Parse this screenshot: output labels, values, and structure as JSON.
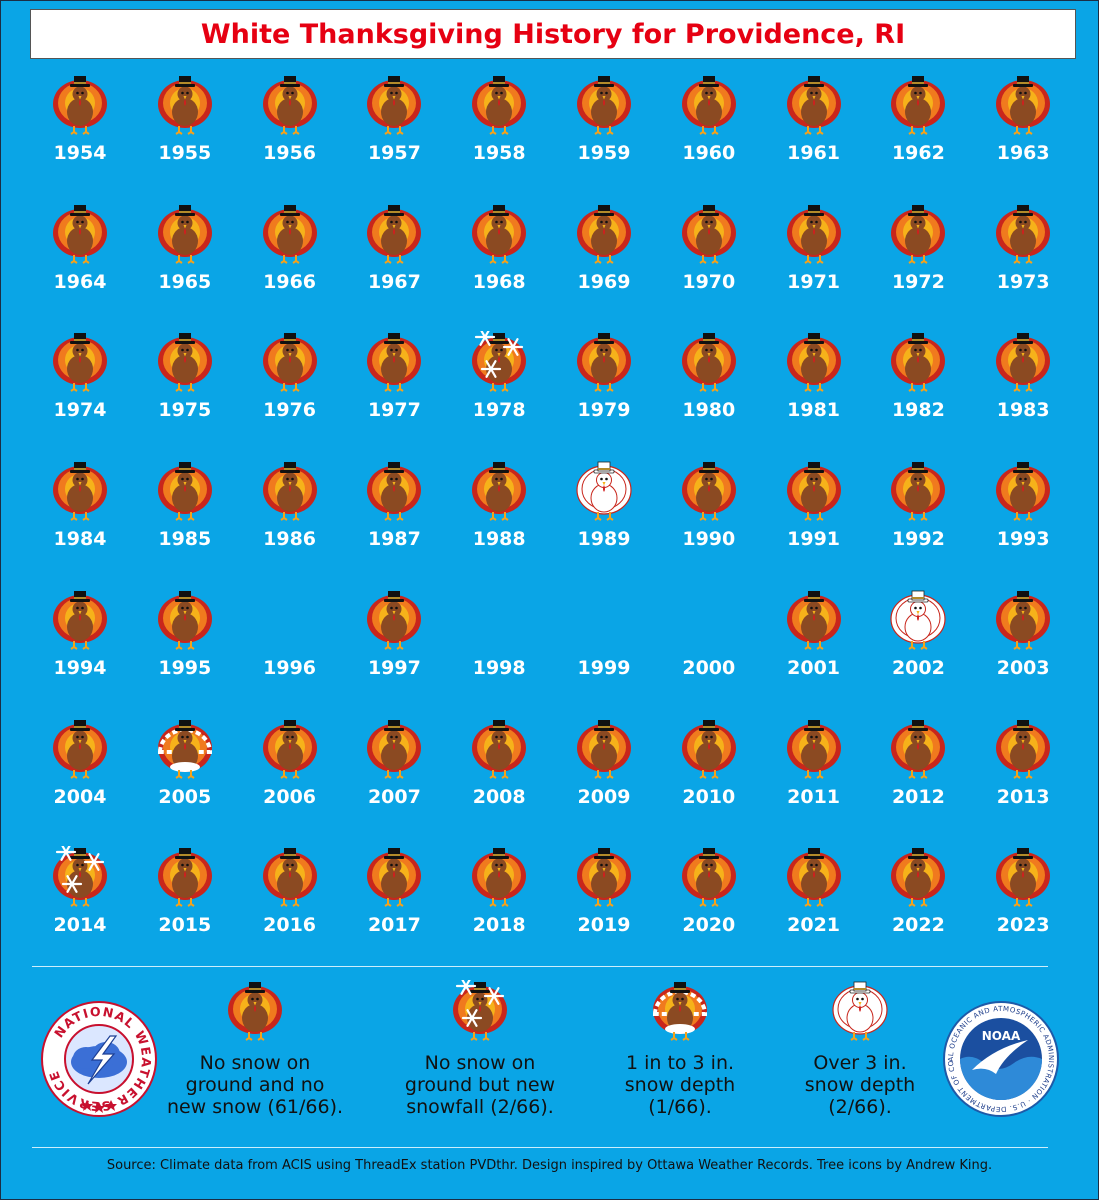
{
  "title": "White Thanksgiving History for Providence, RI",
  "chart_data": {
    "type": "table",
    "title": "White Thanksgiving History for Providence, RI",
    "categories": [
      "none",
      "new_snowfall",
      "depth_1_3",
      "depth_over_3",
      "missing"
    ],
    "years": [
      {
        "year": "1954",
        "category": "none"
      },
      {
        "year": "1955",
        "category": "none"
      },
      {
        "year": "1956",
        "category": "none"
      },
      {
        "year": "1957",
        "category": "none"
      },
      {
        "year": "1958",
        "category": "none"
      },
      {
        "year": "1959",
        "category": "none"
      },
      {
        "year": "1960",
        "category": "none"
      },
      {
        "year": "1961",
        "category": "none"
      },
      {
        "year": "1962",
        "category": "none"
      },
      {
        "year": "1963",
        "category": "none"
      },
      {
        "year": "1964",
        "category": "none"
      },
      {
        "year": "1965",
        "category": "none"
      },
      {
        "year": "1966",
        "category": "none"
      },
      {
        "year": "1967",
        "category": "none"
      },
      {
        "year": "1968",
        "category": "none"
      },
      {
        "year": "1969",
        "category": "none"
      },
      {
        "year": "1970",
        "category": "none"
      },
      {
        "year": "1971",
        "category": "none"
      },
      {
        "year": "1972",
        "category": "none"
      },
      {
        "year": "1973",
        "category": "none"
      },
      {
        "year": "1974",
        "category": "none"
      },
      {
        "year": "1975",
        "category": "none"
      },
      {
        "year": "1976",
        "category": "none"
      },
      {
        "year": "1977",
        "category": "none"
      },
      {
        "year": "1978",
        "category": "new_snowfall"
      },
      {
        "year": "1979",
        "category": "none"
      },
      {
        "year": "1980",
        "category": "none"
      },
      {
        "year": "1981",
        "category": "none"
      },
      {
        "year": "1982",
        "category": "none"
      },
      {
        "year": "1983",
        "category": "none"
      },
      {
        "year": "1984",
        "category": "none"
      },
      {
        "year": "1985",
        "category": "none"
      },
      {
        "year": "1986",
        "category": "none"
      },
      {
        "year": "1987",
        "category": "none"
      },
      {
        "year": "1988",
        "category": "none"
      },
      {
        "year": "1989",
        "category": "depth_over_3"
      },
      {
        "year": "1990",
        "category": "none"
      },
      {
        "year": "1991",
        "category": "none"
      },
      {
        "year": "1992",
        "category": "none"
      },
      {
        "year": "1993",
        "category": "none"
      },
      {
        "year": "1994",
        "category": "none"
      },
      {
        "year": "1995",
        "category": "none"
      },
      {
        "year": "1996",
        "category": "missing"
      },
      {
        "year": "1997",
        "category": "none"
      },
      {
        "year": "1998",
        "category": "missing"
      },
      {
        "year": "1999",
        "category": "missing"
      },
      {
        "year": "2000",
        "category": "missing"
      },
      {
        "year": "2001",
        "category": "none"
      },
      {
        "year": "2002",
        "category": "depth_over_3"
      },
      {
        "year": "2003",
        "category": "none"
      },
      {
        "year": "2004",
        "category": "none"
      },
      {
        "year": "2005",
        "category": "depth_1_3"
      },
      {
        "year": "2006",
        "category": "none"
      },
      {
        "year": "2007",
        "category": "none"
      },
      {
        "year": "2008",
        "category": "none"
      },
      {
        "year": "2009",
        "category": "none"
      },
      {
        "year": "2010",
        "category": "none"
      },
      {
        "year": "2011",
        "category": "none"
      },
      {
        "year": "2012",
        "category": "none"
      },
      {
        "year": "2013",
        "category": "none"
      },
      {
        "year": "2014",
        "category": "new_snowfall"
      },
      {
        "year": "2015",
        "category": "none"
      },
      {
        "year": "2016",
        "category": "none"
      },
      {
        "year": "2017",
        "category": "none"
      },
      {
        "year": "2018",
        "category": "none"
      },
      {
        "year": "2019",
        "category": "none"
      },
      {
        "year": "2020",
        "category": "none"
      },
      {
        "year": "2021",
        "category": "none"
      },
      {
        "year": "2022",
        "category": "none"
      },
      {
        "year": "2023",
        "category": "none"
      }
    ]
  },
  "legend": [
    {
      "category": "none",
      "label": "No snow on ground and no new snow (61/66)."
    },
    {
      "category": "new_snowfall",
      "label": "No snow on ground but new snowfall (2/66)."
    },
    {
      "category": "depth_1_3",
      "label": "1 in to 3 in. snow depth (1/66)."
    },
    {
      "category": "depth_over_3",
      "label": "Over 3 in. snow depth (2/66)."
    }
  ],
  "logos": {
    "nws": {
      "icon": "nws-logo-icon",
      "text": "NATIONAL WEATHER SERVICE"
    },
    "noaa": {
      "icon": "noaa-logo-icon",
      "abbr": "NOAA",
      "text": "NATIONAL OCEANIC AND ATMOSPHERIC ADMINISTRATION · U.S. DEPARTMENT OF COMMERCE"
    }
  },
  "source": "Source: Climate data from ACIS using ThreadEx station PVDthr. Design inspired by Ottawa Weather Records. Tree icons by Andrew King.",
  "colors": {
    "background": "#0aa5e6",
    "title": "#e60012",
    "year_text": "#ffffff",
    "turkey_body": "#8b4a22",
    "feather_red": "#c8261c",
    "feather_orange": "#f07a1e"
  }
}
